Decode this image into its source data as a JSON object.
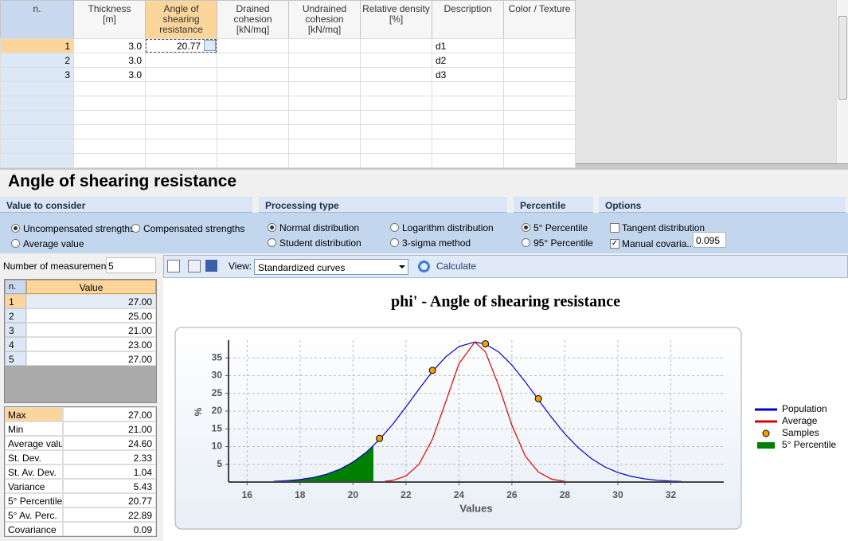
{
  "layers_table": {
    "columns": [
      "n.",
      "Thickness\n[m]",
      "Angle of\nshearing\nresistance",
      "Drained\ncohesion\n[kN/mq]",
      "Undrained\ncohesion\n[kN/mq]",
      "Relative density\n[%]",
      "Description",
      "Color / Texture"
    ],
    "rows": [
      [
        1,
        "3.0",
        20.77,
        null,
        null,
        null,
        "d1",
        null
      ],
      [
        2,
        "3.0",
        null,
        null,
        null,
        null,
        "d2",
        null
      ],
      [
        3,
        "3.0",
        null,
        null,
        null,
        null,
        "d3",
        null
      ]
    ]
  },
  "panel_title": "Angle of shearing resistance",
  "groups": [
    {
      "title": "Value to consider",
      "options": [
        "Uncompensated strengths",
        "Compensated strengths",
        "Average value"
      ],
      "selected": 0
    },
    {
      "title": "Processing type",
      "options": [
        "Normal distribution",
        "Logarithm distribution",
        "Student distribution",
        "3-sigma method"
      ],
      "selected": 0
    },
    {
      "title": "Percentile",
      "options": [
        "5° Percentile",
        "95° Percentile"
      ],
      "selected": 0
    },
    {
      "title": "Options",
      "checkboxes": [
        "Tangent distribution",
        "Manual covaria..."
      ],
      "checked": [
        false,
        true
      ],
      "covariance": 0.095
    }
  ],
  "measurements": {
    "label": "Number of measurements",
    "count": 5,
    "header": [
      "n.",
      "Value"
    ],
    "rows": [
      [
        1,
        "27.00"
      ],
      [
        2,
        "25.00"
      ],
      [
        3,
        "21.00"
      ],
      [
        4,
        "23.00"
      ],
      [
        5,
        "27.00"
      ]
    ]
  },
  "statistics": [
    [
      "Max",
      "27.00"
    ],
    [
      "Min",
      "21.00"
    ],
    [
      "Average value",
      "24.60"
    ],
    [
      "St. Dev.",
      "2.33"
    ],
    [
      "St. Av. Dev.",
      "1.04"
    ],
    [
      "Variance",
      "5.43"
    ],
    [
      "5° Percentile",
      "20.77"
    ],
    [
      "5° Av. Perc.",
      "22.89"
    ],
    [
      "Covariance",
      "0.09"
    ]
  ],
  "toolbar": {
    "view_label": "View:",
    "view_value": "Standardized curves",
    "calculate": "Calculate"
  },
  "chart_data": {
    "type": "line",
    "title": "phi' - Angle of shearing resistance",
    "x_label": "Values",
    "y_label": "%",
    "xlim": [
      15.3,
      34
    ],
    "ylim": [
      0,
      40
    ],
    "xticks": [
      16,
      18,
      20,
      22,
      24,
      26,
      28,
      30,
      32
    ],
    "yticks": [
      5,
      10,
      15,
      20,
      25,
      30,
      35
    ],
    "grid": true,
    "series": [
      {
        "name": "Population",
        "color": "#0000cc",
        "kind": "line",
        "x": [
          17,
          17.5,
          18,
          18.5,
          19,
          19.5,
          20,
          20.5,
          21,
          21.5,
          22,
          22.5,
          23,
          23.5,
          24,
          24.6,
          25,
          25.5,
          26,
          26.5,
          27,
          27.5,
          28,
          28.5,
          29,
          29.5,
          30,
          30.5,
          31,
          31.5,
          32,
          32.4
        ],
        "values": [
          0.19,
          0.38,
          0.72,
          1.28,
          2.2,
          3.6,
          5.63,
          8.4,
          12.0,
          16.3,
          21.2,
          26.3,
          31.2,
          35.3,
          38.2,
          39.5,
          38.9,
          36.7,
          33.0,
          28.3,
          23.2,
          18.2,
          13.6,
          9.7,
          6.64,
          4.3,
          2.69,
          1.6,
          0.91,
          0.49,
          0.26,
          0.17
        ]
      },
      {
        "name": "Average",
        "color": "#dd0000",
        "kind": "line",
        "x": [
          21.2,
          21.5,
          22,
          22.5,
          23,
          23.5,
          24,
          24.6,
          25,
          25.5,
          26,
          26.5,
          27,
          27.5,
          28
        ],
        "values": [
          0.19,
          0.47,
          1.7,
          5.1,
          12.1,
          22.6,
          33.4,
          39.5,
          36.7,
          27.2,
          16.0,
          7.4,
          2.8,
          0.81,
          0.19
        ]
      },
      {
        "name": "Samples",
        "color": "#f5a000",
        "kind": "marker",
        "x": [
          21,
          23,
          25,
          27
        ],
        "values": [
          12.3,
          31.5,
          39.0,
          23.5
        ]
      },
      {
        "name": "5° Percentile",
        "color": "#008000",
        "kind": "area",
        "x": [
          17,
          17.5,
          18,
          18.5,
          19,
          19.5,
          20,
          20.5,
          20.77
        ],
        "values": [
          0.19,
          0.38,
          0.72,
          1.28,
          2.2,
          3.6,
          5.63,
          8.4,
          10.2
        ]
      }
    ]
  }
}
